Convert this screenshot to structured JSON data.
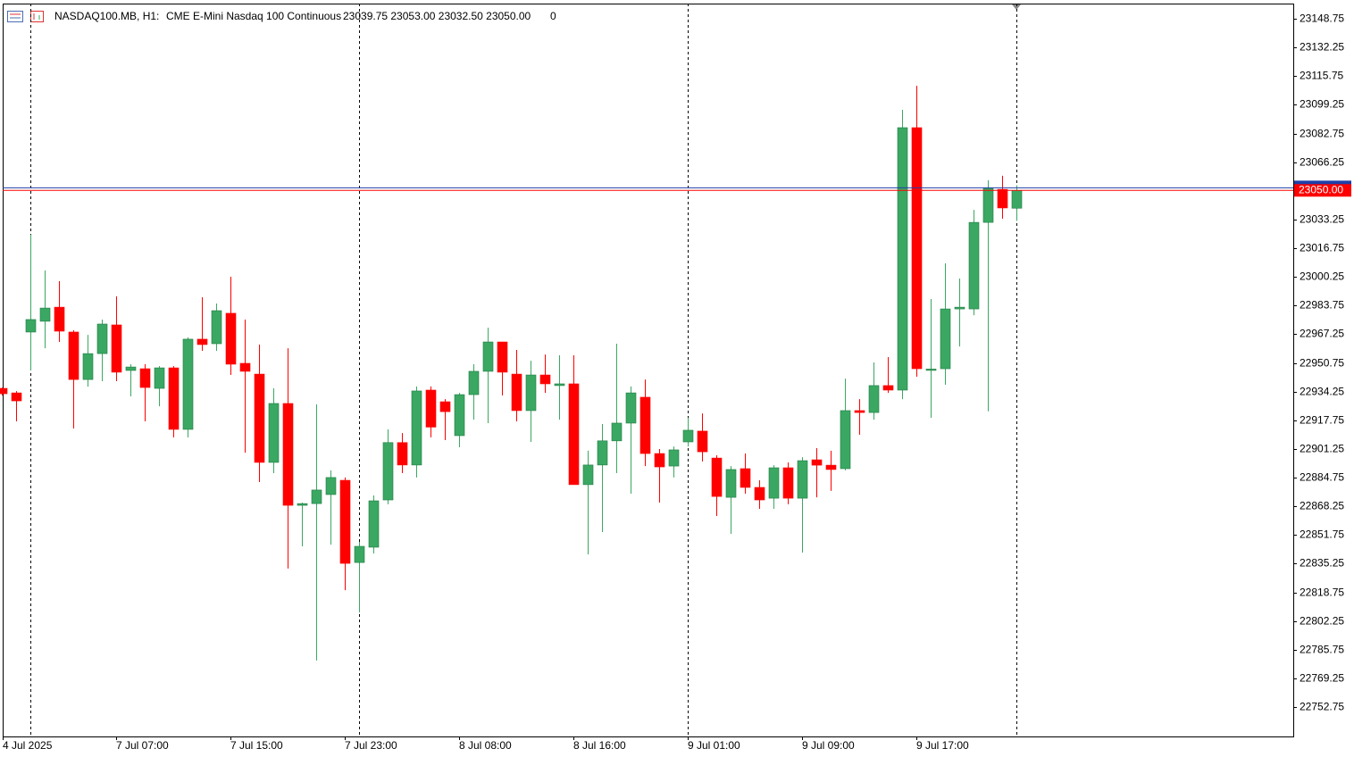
{
  "chart_data": {
    "type": "candlestick",
    "symbol": "NASDAQ100.MB, H1:",
    "description": "CME E-Mini Nasdaq 100 Continuous",
    "ohlc_text": "23039.75 23053.00 23032.50 23050.00",
    "volume_text": "0",
    "up_color": "#3aa862",
    "down_color": "#ff0000",
    "categories": [
      "4 Jul 2025",
      null,
      null,
      null,
      null,
      null,
      null,
      null,
      "7 Jul 07:00",
      null,
      null,
      null,
      null,
      null,
      null,
      null,
      "7 Jul 15:00",
      null,
      null,
      null,
      null,
      null,
      null,
      null,
      "7 Jul 23:00",
      null,
      null,
      null,
      null,
      null,
      null,
      null,
      "8 Jul 08:00",
      null,
      null,
      null,
      null,
      null,
      null,
      null,
      "8 Jul 16:00",
      null,
      null,
      null,
      null,
      null,
      null,
      null,
      "9 Jul 01:00",
      null,
      null,
      null,
      null,
      null,
      null,
      null,
      "9 Jul 09:00",
      null,
      null,
      null,
      null,
      null,
      null,
      null,
      "9 Jul 17:00",
      null,
      null,
      null,
      null,
      null,
      null,
      null
    ],
    "open": [
      22936.1,
      22933.5,
      22968.5,
      22974.7,
      22982.8,
      22968.5,
      22941.2,
      22956.1,
      22972.6,
      22946.4,
      22947.4,
      22936.1,
      22947.9,
      22912.5,
      22964.4,
      22961.8,
      22979.3,
      22950.5,
      22944.3,
      22893.5,
      22927.4,
      22868.8,
      22869.8,
      22875.0,
      22883.2,
      22835.9,
      22844.7,
      22871.9,
      22904.9,
      22892.0,
      22935.1,
      22928.4,
      22908.9,
      22932.5,
      22945.9,
      22962.8,
      22944.3,
      22923.3,
      22943.8,
      22937.7,
      22938.7,
      22880.7,
      22892.0,
      22905.9,
      22916.1,
      22931.0,
      22898.6,
      22891.4,
      22905.3,
      22911.5,
      22896.0,
      22873.4,
      22889.9,
      22879.1,
      22872.9,
      22890.4,
      22872.9,
      22895.0,
      22891.9,
      22889.9,
      22923.3,
      22922.2,
      22937.7,
      22935.1,
      23086.1,
      22947.2,
      22947.4,
      22981.8,
      22981.8,
      23031.6,
      23050.6,
      23039.75
    ],
    "high": [
      22936.5,
      22934.5,
      23024.5,
      23003.9,
      22997.8,
      22969.5,
      22966.9,
      22975.7,
      22989.0,
      22950.0,
      22950.0,
      22948.9,
      22948.9,
      22965.4,
      22988.5,
      22984.9,
      23000.3,
      22975.7,
      22961.3,
      22936.1,
      22959.2,
      22870.4,
      22926.9,
      22888.9,
      22884.8,
      22847.8,
      22874.5,
      22912.5,
      22910.4,
      22937.2,
      22937.2,
      22929.9,
      22933.5,
      22950.0,
      22971.0,
      22962.8,
      22958.2,
      22952.0,
      22955.6,
      22955.1,
      22955.1,
      22900.2,
      22915.6,
      22961.8,
      22937.2,
      22941.2,
      22901.2,
      22902.7,
      22919.2,
      22921.7,
      22897.6,
      22891.4,
      22898.6,
      22883.2,
      22891.9,
      22893.5,
      22896.5,
      22901.7,
      22900.2,
      22941.7,
      22929.9,
      22951.0,
      22954.1,
      23096.4,
      23110.2,
      22987.5,
      23008.0,
      22999.3,
      23038.8,
      23055.8,
      23058.4,
      23053.0
    ],
    "low": [
      22932.0,
      22917.1,
      22946.4,
      22959.2,
      22962.8,
      22913.0,
      22937.1,
      22940.2,
      22940.2,
      22931.5,
      22917.1,
      22925.8,
      22907.9,
      22907.9,
      22957.7,
      22957.7,
      22943.8,
      22899.1,
      22882.2,
      22887.3,
      22832.4,
      22845.2,
      22779.5,
      22846.2,
      22820.0,
      22807.2,
      22841.1,
      22869.4,
      22887.3,
      22884.8,
      22907.9,
      22906.3,
      22902.2,
      22918.1,
      22916.1,
      22932.0,
      22917.1,
      22905.3,
      22933.5,
      22918.1,
      22880.7,
      22840.6,
      22853.4,
      22887.3,
      22875.5,
      22891.4,
      22870.4,
      22884.8,
      22902.7,
      22894.0,
      22862.7,
      22852.4,
      22875.5,
      22866.8,
      22866.8,
      22869.4,
      22841.6,
      22873.4,
      22877.1,
      22888.9,
      22909.4,
      22918.1,
      22933.5,
      22929.9,
      22942.8,
      22919.2,
      22938.2,
      22960.2,
      22978.2,
      22922.9,
      23033.7,
      23032.5
    ],
    "close": [
      22933.0,
      22928.9,
      22975.7,
      22982.3,
      22969.0,
      22941.2,
      22956.1,
      22973.1,
      22945.4,
      22948.4,
      22936.6,
      22947.9,
      22912.5,
      22964.4,
      22961.3,
      22980.8,
      22950.0,
      22945.9,
      22893.5,
      22927.4,
      22868.8,
      22869.8,
      22877.6,
      22884.8,
      22835.4,
      22845.2,
      22871.4,
      22904.9,
      22892.0,
      22934.6,
      22913.8,
      22922.7,
      22932.5,
      22945.9,
      22962.8,
      22945.4,
      22923.3,
      22943.8,
      22938.7,
      22938.7,
      22880.7,
      22892.0,
      22905.9,
      22916.1,
      22933.5,
      22898.6,
      22890.9,
      22900.7,
      22912.0,
      22899.6,
      22873.9,
      22889.4,
      22879.1,
      22871.9,
      22890.4,
      22872.9,
      22894.5,
      22891.9,
      22889.4,
      22923.3,
      22922.2,
      22937.7,
      22935.1,
      23086.1,
      22947.4,
      22947.2,
      22981.8,
      22982.8,
      23031.6,
      23051.2,
      23039.9,
      23050.0
    ],
    "ylim": [
      22735.8,
      23157.5
    ],
    "yticks": [
      23148.75,
      23132.25,
      23115.75,
      23099.25,
      23082.75,
      23066.25,
      23033.25,
      23016.75,
      23000.25,
      22983.75,
      22967.25,
      22950.75,
      22934.25,
      22917.75,
      22901.25,
      22884.75,
      22868.25,
      22851.75,
      22835.25,
      22818.75,
      22802.25,
      22785.75,
      22769.25,
      22752.75
    ],
    "ask": 23051.5,
    "last_price": {
      "value": 23050,
      "label": "23050.00"
    }
  }
}
